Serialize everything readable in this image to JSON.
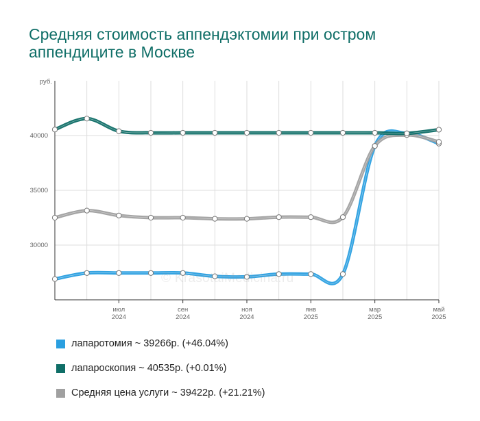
{
  "title": "Средняя стоимость аппендэктомии при остром аппендиците в Москве",
  "watermark": "© KrasotaiMedicina.ru",
  "chart_data": {
    "type": "line",
    "y_unit": "руб.",
    "ylim": [
      25000,
      45000
    ],
    "y_ticks": [
      30000,
      35000,
      40000
    ],
    "x": [
      "2024-05",
      "2024-06",
      "2024-07",
      "2024-08",
      "2024-09",
      "2024-10",
      "2024-11",
      "2024-12",
      "2025-01",
      "2025-02",
      "2025-03",
      "2025-04",
      "2025-05"
    ],
    "x_tick_labels": [
      {
        "month": "июл",
        "year": "2024"
      },
      {
        "month": "сен",
        "year": "2024"
      },
      {
        "month": "ноя",
        "year": "2024"
      },
      {
        "month": "янв",
        "year": "2025"
      },
      {
        "month": "мар",
        "year": "2025"
      },
      {
        "month": "май",
        "year": "2025"
      }
    ],
    "grid": true,
    "legend_position": "bottom",
    "series": [
      {
        "name": "лапаротомия",
        "color": "#2a9fe0",
        "values": [
          26900,
          27450,
          27450,
          27450,
          27450,
          27150,
          27100,
          27350,
          27350,
          27350,
          39050,
          40200,
          39266
        ]
      },
      {
        "name": "лапароскопия",
        "color": "#0f6e67",
        "values": [
          40550,
          41550,
          40400,
          40250,
          40250,
          40250,
          40250,
          40250,
          40250,
          40250,
          40250,
          40200,
          40535
        ]
      },
      {
        "name": "Средняя цена услуги",
        "color": "#a0a0a0",
        "values": [
          32500,
          33150,
          32700,
          32500,
          32500,
          32400,
          32400,
          32550,
          32550,
          32550,
          39050,
          40050,
          39422
        ]
      }
    ]
  },
  "legend": [
    {
      "label": "лапаротомия ~ 39266р. (+46.04%)",
      "color": "#2a9fe0"
    },
    {
      "label": "лапароскопия ~ 40535р. (+0.01%)",
      "color": "#0f6e67"
    },
    {
      "label": "Средняя цена услуги ~ 39422р. (+21.21%)",
      "color": "#a0a0a0"
    }
  ]
}
